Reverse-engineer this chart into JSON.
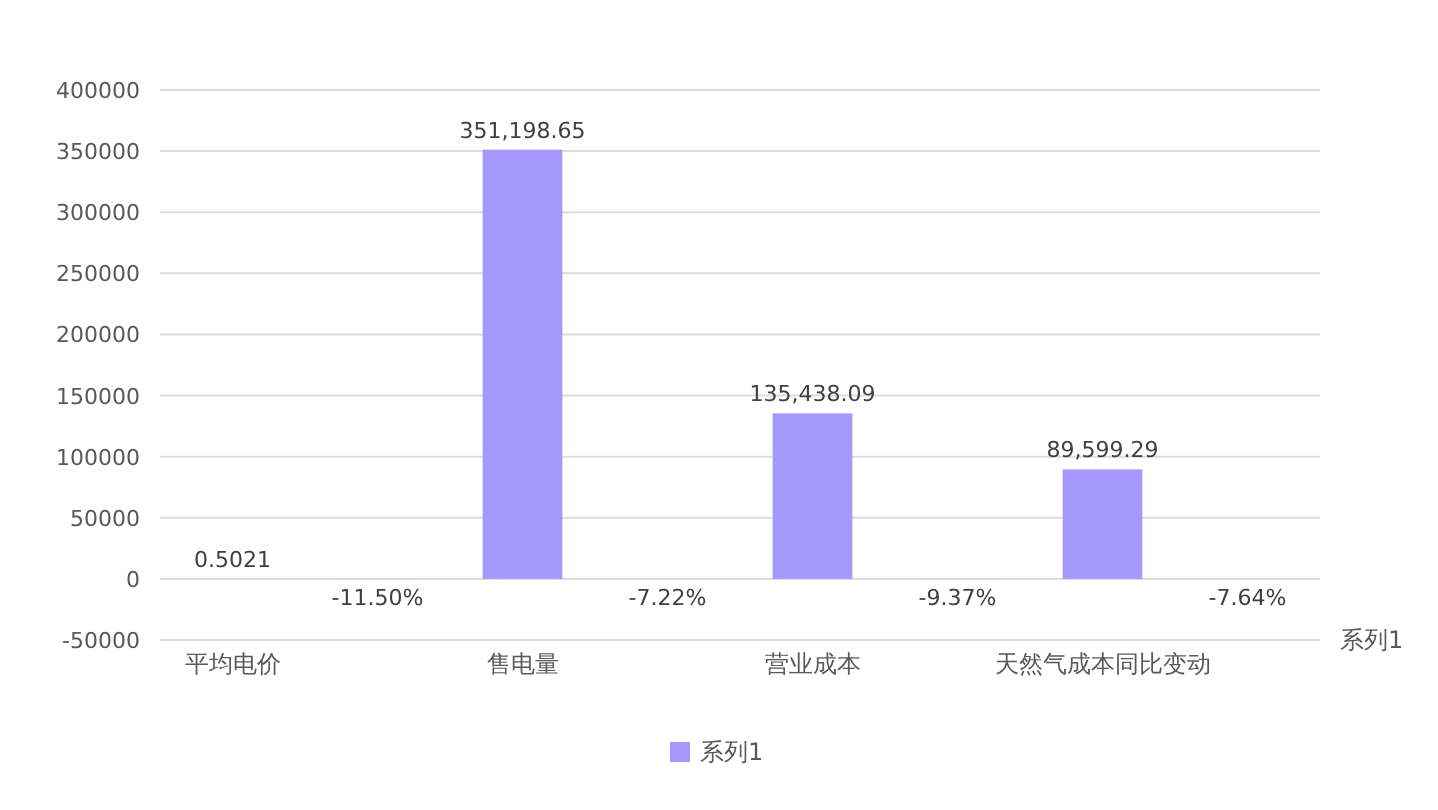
{
  "chart_data": {
    "type": "bar",
    "categories": [
      "平均电价",
      null,
      "售电量",
      null,
      "营业成本",
      null,
      "天然气成本同比变动",
      null
    ],
    "series": [
      {
        "name": "系列1",
        "color": "#a598ff",
        "values": [
          0.5021,
          -11.5,
          351198.65,
          -7.22,
          135438.09,
          -9.37,
          89599.29,
          -7.64
        ],
        "value_labels": [
          "0.5021",
          "-11.50%",
          "351,198.65",
          "-7.22%",
          "135,438.09",
          "-9.37%",
          "89,599.29",
          "-7.64%"
        ]
      }
    ],
    "ylim": [
      -50000,
      400000
    ],
    "yticks": [
      -50000,
      0,
      50000,
      100000,
      150000,
      200000,
      250000,
      300000,
      350000,
      400000
    ],
    "grid": "y",
    "legend": "bottom",
    "annotations": [
      "系列1"
    ]
  }
}
